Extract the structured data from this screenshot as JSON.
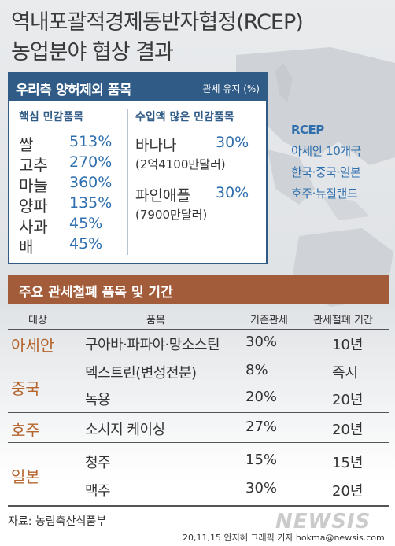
{
  "title": {
    "line1": "역내포괄적경제동반자협정(RCEP)",
    "line2": "농업분야 협상 결과"
  },
  "exclusion": {
    "heading": "우리측 양허제외 품목",
    "unit": "관세 유지 (%)",
    "core_heading": "핵심 민감품목",
    "core_items": [
      {
        "name": "쌀",
        "value": "513%"
      },
      {
        "name": "고추",
        "value": "270%"
      },
      {
        "name": "마늘",
        "value": "360%"
      },
      {
        "name": "양파",
        "value": "135%"
      },
      {
        "name": "사과",
        "value": "45%"
      },
      {
        "name": "배",
        "value": "45%"
      }
    ],
    "import_heading": "수입액 많은 민감품목",
    "import_items": [
      {
        "name": "바나나",
        "value": "30%",
        "sub": "(2억4100만달러)"
      },
      {
        "name": "파인애플",
        "value": "30%",
        "sub": "(7900만달러)"
      }
    ]
  },
  "rcep": {
    "title": "RCEP",
    "lines": [
      "아세안 10개국",
      "한국·중국·일본",
      "호주·뉴질랜드"
    ]
  },
  "tariff": {
    "heading": "주요 관세철폐 품목 및 기간",
    "columns": {
      "target": "대상",
      "item": "품목",
      "base": "기존관세",
      "period": "관세철폐 기간"
    },
    "groups": [
      {
        "label": "아세안",
        "rows": [
          {
            "item": "구아바·파파야·망소스틴",
            "base": "30%",
            "period": "10년"
          }
        ]
      },
      {
        "label": "중국",
        "rows": [
          {
            "item": "덱스트린(변성전분)",
            "base": "8%",
            "period": "즉시"
          },
          {
            "item": "녹용",
            "base": "20%",
            "period": "20년"
          }
        ]
      },
      {
        "label": "호주",
        "rows": [
          {
            "item": "소시지 케이싱",
            "base": "27%",
            "period": "20년"
          }
        ]
      },
      {
        "label": "일본",
        "rows": [
          {
            "item": "청주",
            "base": "15%",
            "period": "15년"
          },
          {
            "item": "맥주",
            "base": "30%",
            "period": "20년"
          }
        ]
      }
    ]
  },
  "source": "자료: 농림축산식품부",
  "credit": "20,11,15 안지혜 그래픽 기자 hokma@newsis.com",
  "logo": "NEWSIS",
  "colors": {
    "navy": "#2f5b86",
    "blue_text": "#2f6fae",
    "brown": "#a35c3a",
    "orange_text": "#b5652c"
  }
}
